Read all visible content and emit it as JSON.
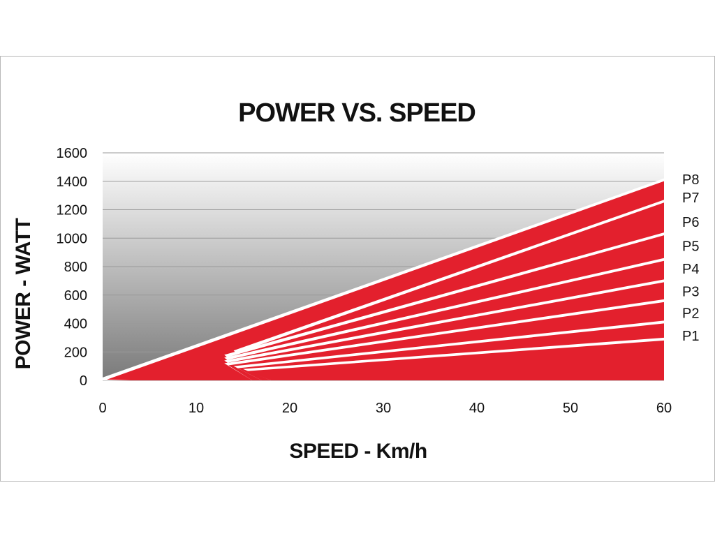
{
  "chart_data": {
    "type": "area",
    "title": "POWER VS. SPEED",
    "xlabel": "SPEED - Km/h",
    "ylabel": "POWER - WATT",
    "xlim": [
      0,
      60
    ],
    "ylim": [
      0,
      1600
    ],
    "xticks": [
      "0",
      "10",
      "20",
      "30",
      "40",
      "50",
      "60"
    ],
    "yticks": [
      "0",
      "200",
      "400",
      "600",
      "800",
      "1000",
      "1200",
      "1400",
      "1600"
    ],
    "grid": true,
    "colors": {
      "fill": "#e3202d",
      "separator": "#ffffff",
      "plot_gradient_top": "#ffffff",
      "plot_gradient_bottom": "#7a7a7a",
      "gridline": "#9a9a9a"
    },
    "envelope": {
      "x": [
        0,
        5,
        10,
        14,
        20,
        30,
        40,
        50,
        60
      ],
      "y": [
        20,
        70,
        150,
        270,
        400,
        640,
        900,
        1150,
        1420
      ]
    },
    "series": [
      {
        "name": "P1",
        "x": [
          15,
          60
        ],
        "y": [
          80,
          300
        ]
      },
      {
        "name": "P2",
        "x": [
          14,
          60
        ],
        "y": [
          100,
          420
        ]
      },
      {
        "name": "P3",
        "x": [
          13,
          60
        ],
        "y": [
          120,
          570
        ]
      },
      {
        "name": "P4",
        "x": [
          13,
          60
        ],
        "y": [
          140,
          710
        ]
      },
      {
        "name": "P5",
        "x": [
          13,
          60
        ],
        "y": [
          160,
          860
        ]
      },
      {
        "name": "P6",
        "x": [
          13,
          60
        ],
        "y": [
          180,
          1040
        ]
      },
      {
        "name": "P7",
        "x": [
          14,
          60
        ],
        "y": [
          210,
          1270
        ]
      },
      {
        "name": "P8",
        "x": [
          0,
          60
        ],
        "y": [
          20,
          1420
        ]
      }
    ],
    "series_labels": [
      "P8",
      "P7",
      "P6",
      "P5",
      "P4",
      "P3",
      "P2",
      "P1"
    ]
  }
}
